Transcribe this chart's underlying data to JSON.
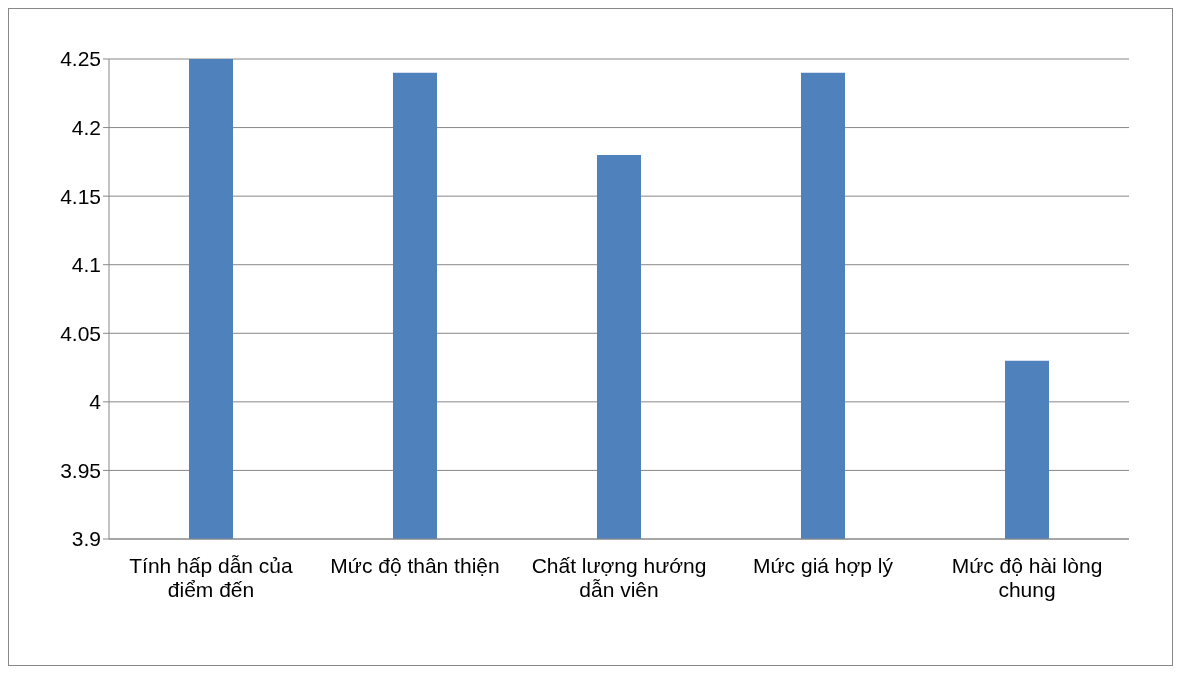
{
  "chart_data": {
    "type": "bar",
    "categories": [
      "Tính hấp dẫn của điểm đến",
      "Mức độ thân thiện",
      "Chất lượng hướng dẫn viên",
      "Mức giá hợp lý",
      "Mức độ hài lòng chung"
    ],
    "values": [
      4.25,
      4.24,
      4.18,
      4.24,
      4.03
    ],
    "color": "#4f81bd",
    "ylim": [
      3.9,
      4.25
    ],
    "yticks": [
      3.9,
      3.95,
      4,
      4.05,
      4.1,
      4.15,
      4.2,
      4.25
    ],
    "grid": "y"
  }
}
